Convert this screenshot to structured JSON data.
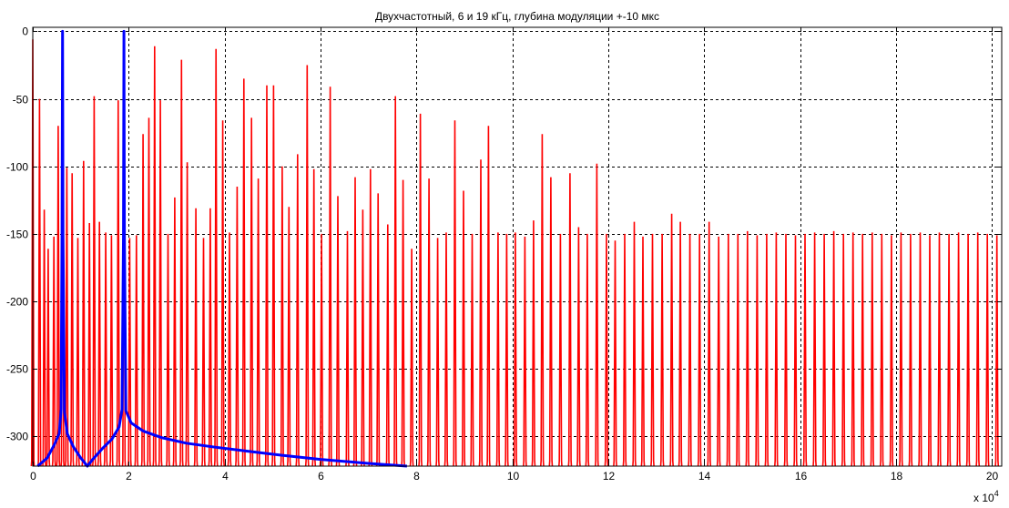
{
  "chart_data": {
    "type": "line",
    "title": "Двухчастотный, 6 и 19 кГц, глубина модуляции +-10 мкс",
    "xlabel": "",
    "ylabel": "",
    "x_multiplier_label": "x 10",
    "x_multiplier_exponent": "4",
    "xlim": [
      0,
      20.2
    ],
    "ylim": [
      -322,
      3
    ],
    "x_ticks": [
      0,
      2,
      4,
      6,
      8,
      10,
      12,
      14,
      16,
      18,
      20
    ],
    "x_tick_labels": [
      "0",
      "2",
      "4",
      "6",
      "8",
      "10",
      "12",
      "14",
      "16",
      "18",
      "20"
    ],
    "y_ticks": [
      0,
      -50,
      -100,
      -150,
      -200,
      -250,
      -300
    ],
    "y_tick_labels": [
      "0",
      "-50",
      "-100",
      "-150",
      "-200",
      "-250",
      "-300"
    ],
    "grid": true,
    "grid_style": "dashed",
    "colors": {
      "red_series": "#ff0000",
      "blue_series": "#0000ff",
      "grid": "#000000"
    },
    "series": [
      {
        "color": "#ff0000",
        "style": "spectral spikes",
        "floor": -318,
        "peak_tops": [
          {
            "x": 0.0,
            "y": -6
          },
          {
            "x": 0.14,
            "y": -50
          },
          {
            "x": 0.24,
            "y": -132
          },
          {
            "x": 0.32,
            "y": -161
          },
          {
            "x": 0.44,
            "y": -152
          },
          {
            "x": 0.53,
            "y": -70
          },
          {
            "x": 0.62,
            "y": -47
          },
          {
            "x": 0.71,
            "y": -101
          },
          {
            "x": 0.82,
            "y": -105
          },
          {
            "x": 0.94,
            "y": -153
          },
          {
            "x": 1.06,
            "y": -96
          },
          {
            "x": 1.18,
            "y": -142
          },
          {
            "x": 1.28,
            "y": -48
          },
          {
            "x": 1.39,
            "y": -141
          },
          {
            "x": 1.52,
            "y": -149
          },
          {
            "x": 1.64,
            "y": -151
          },
          {
            "x": 1.78,
            "y": -51
          },
          {
            "x": 1.9,
            "y": -26
          },
          {
            "x": 2.02,
            "y": -153
          },
          {
            "x": 2.16,
            "y": -151
          },
          {
            "x": 2.3,
            "y": -76
          },
          {
            "x": 2.42,
            "y": -64
          },
          {
            "x": 2.54,
            "y": -11
          },
          {
            "x": 2.66,
            "y": -51
          },
          {
            "x": 2.82,
            "y": -150
          },
          {
            "x": 2.96,
            "y": -123
          },
          {
            "x": 3.1,
            "y": -21
          },
          {
            "x": 3.22,
            "y": -97
          },
          {
            "x": 3.4,
            "y": -131
          },
          {
            "x": 3.56,
            "y": -153
          },
          {
            "x": 3.7,
            "y": -131
          },
          {
            "x": 3.82,
            "y": -13
          },
          {
            "x": 3.96,
            "y": -66
          },
          {
            "x": 4.1,
            "y": -149
          },
          {
            "x": 4.26,
            "y": -115
          },
          {
            "x": 4.4,
            "y": -35
          },
          {
            "x": 4.56,
            "y": -64
          },
          {
            "x": 4.7,
            "y": -109
          },
          {
            "x": 4.88,
            "y": -40
          },
          {
            "x": 5.02,
            "y": -40
          },
          {
            "x": 5.2,
            "y": -100
          },
          {
            "x": 5.34,
            "y": -130
          },
          {
            "x": 5.52,
            "y": -91
          },
          {
            "x": 5.72,
            "y": -25
          },
          {
            "x": 5.86,
            "y": -102
          },
          {
            "x": 6.02,
            "y": -150
          },
          {
            "x": 6.2,
            "y": -41
          },
          {
            "x": 6.36,
            "y": -122
          },
          {
            "x": 6.56,
            "y": -148
          },
          {
            "x": 6.72,
            "y": -108
          },
          {
            "x": 6.88,
            "y": -132
          },
          {
            "x": 7.04,
            "y": -102
          },
          {
            "x": 7.2,
            "y": -120
          },
          {
            "x": 7.4,
            "y": -143
          },
          {
            "x": 7.56,
            "y": -48
          },
          {
            "x": 7.72,
            "y": -110
          },
          {
            "x": 7.9,
            "y": -161
          },
          {
            "x": 8.08,
            "y": -61
          },
          {
            "x": 8.26,
            "y": -109
          },
          {
            "x": 8.44,
            "y": -153
          },
          {
            "x": 8.62,
            "y": -149
          },
          {
            "x": 8.8,
            "y": -66
          },
          {
            "x": 8.98,
            "y": -118
          },
          {
            "x": 9.16,
            "y": -150
          },
          {
            "x": 9.34,
            "y": -95
          },
          {
            "x": 9.5,
            "y": -70
          },
          {
            "x": 9.7,
            "y": -149
          },
          {
            "x": 9.88,
            "y": -150
          },
          {
            "x": 10.06,
            "y": -149
          },
          {
            "x": 10.26,
            "y": -152
          },
          {
            "x": 10.44,
            "y": -140
          },
          {
            "x": 10.62,
            "y": -76
          },
          {
            "x": 10.8,
            "y": -108
          },
          {
            "x": 11.0,
            "y": -150
          },
          {
            "x": 11.2,
            "y": -105
          },
          {
            "x": 11.38,
            "y": -145
          },
          {
            "x": 11.56,
            "y": -150
          },
          {
            "x": 11.76,
            "y": -98
          },
          {
            "x": 11.96,
            "y": -150
          },
          {
            "x": 12.14,
            "y": -155
          },
          {
            "x": 12.34,
            "y": -150
          },
          {
            "x": 12.54,
            "y": -141
          },
          {
            "x": 12.72,
            "y": -152
          },
          {
            "x": 12.92,
            "y": -150
          },
          {
            "x": 13.12,
            "y": -150
          },
          {
            "x": 13.32,
            "y": -135
          },
          {
            "x": 13.5,
            "y": -141
          },
          {
            "x": 13.7,
            "y": -150
          },
          {
            "x": 13.9,
            "y": -150
          },
          {
            "x": 14.1,
            "y": -141
          },
          {
            "x": 14.3,
            "y": -152
          },
          {
            "x": 14.5,
            "y": -150
          },
          {
            "x": 14.7,
            "y": -150
          },
          {
            "x": 14.9,
            "y": -148
          },
          {
            "x": 15.1,
            "y": -151
          },
          {
            "x": 15.3,
            "y": -150
          },
          {
            "x": 15.5,
            "y": -149
          },
          {
            "x": 15.7,
            "y": -150
          },
          {
            "x": 15.9,
            "y": -151
          },
          {
            "x": 16.1,
            "y": -150
          },
          {
            "x": 16.3,
            "y": -149
          },
          {
            "x": 16.5,
            "y": -150
          },
          {
            "x": 16.7,
            "y": -148
          },
          {
            "x": 16.9,
            "y": -150
          },
          {
            "x": 17.1,
            "y": -149
          },
          {
            "x": 17.3,
            "y": -150
          },
          {
            "x": 17.5,
            "y": -149
          },
          {
            "x": 17.7,
            "y": -150
          },
          {
            "x": 17.9,
            "y": -151
          },
          {
            "x": 18.1,
            "y": -149
          },
          {
            "x": 18.3,
            "y": -150
          },
          {
            "x": 18.5,
            "y": -149
          },
          {
            "x": 18.7,
            "y": -151
          },
          {
            "x": 18.9,
            "y": -149
          },
          {
            "x": 19.1,
            "y": -150
          },
          {
            "x": 19.3,
            "y": -149
          },
          {
            "x": 19.5,
            "y": -150
          },
          {
            "x": 19.7,
            "y": -149
          },
          {
            "x": 19.9,
            "y": -150
          },
          {
            "x": 20.1,
            "y": -151
          }
        ]
      },
      {
        "color": "#0000ff",
        "style": "line",
        "points": [
          {
            "x": 0.1,
            "y": -322
          },
          {
            "x": 0.3,
            "y": -316
          },
          {
            "x": 0.45,
            "y": -306
          },
          {
            "x": 0.55,
            "y": -298
          },
          {
            "x": 0.59,
            "y": -280
          },
          {
            "x": 0.61,
            "y": -150
          },
          {
            "x": 0.62,
            "y": 0
          },
          {
            "x": 0.63,
            "y": -150
          },
          {
            "x": 0.66,
            "y": -282
          },
          {
            "x": 0.72,
            "y": -298
          },
          {
            "x": 0.85,
            "y": -308
          },
          {
            "x": 1.0,
            "y": -316
          },
          {
            "x": 1.14,
            "y": -322
          },
          {
            "x": 1.25,
            "y": -317
          },
          {
            "x": 1.45,
            "y": -309
          },
          {
            "x": 1.65,
            "y": -302
          },
          {
            "x": 1.8,
            "y": -293
          },
          {
            "x": 1.86,
            "y": -280
          },
          {
            "x": 1.89,
            "y": -150
          },
          {
            "x": 1.9,
            "y": 0
          },
          {
            "x": 1.91,
            "y": -150
          },
          {
            "x": 1.94,
            "y": -281
          },
          {
            "x": 2.05,
            "y": -290
          },
          {
            "x": 2.3,
            "y": -296
          },
          {
            "x": 2.7,
            "y": -301
          },
          {
            "x": 3.2,
            "y": -305
          },
          {
            "x": 3.8,
            "y": -308
          },
          {
            "x": 4.5,
            "y": -311
          },
          {
            "x": 5.2,
            "y": -314
          },
          {
            "x": 6.0,
            "y": -317
          },
          {
            "x": 7.0,
            "y": -320
          },
          {
            "x": 7.8,
            "y": -322
          }
        ]
      }
    ]
  }
}
